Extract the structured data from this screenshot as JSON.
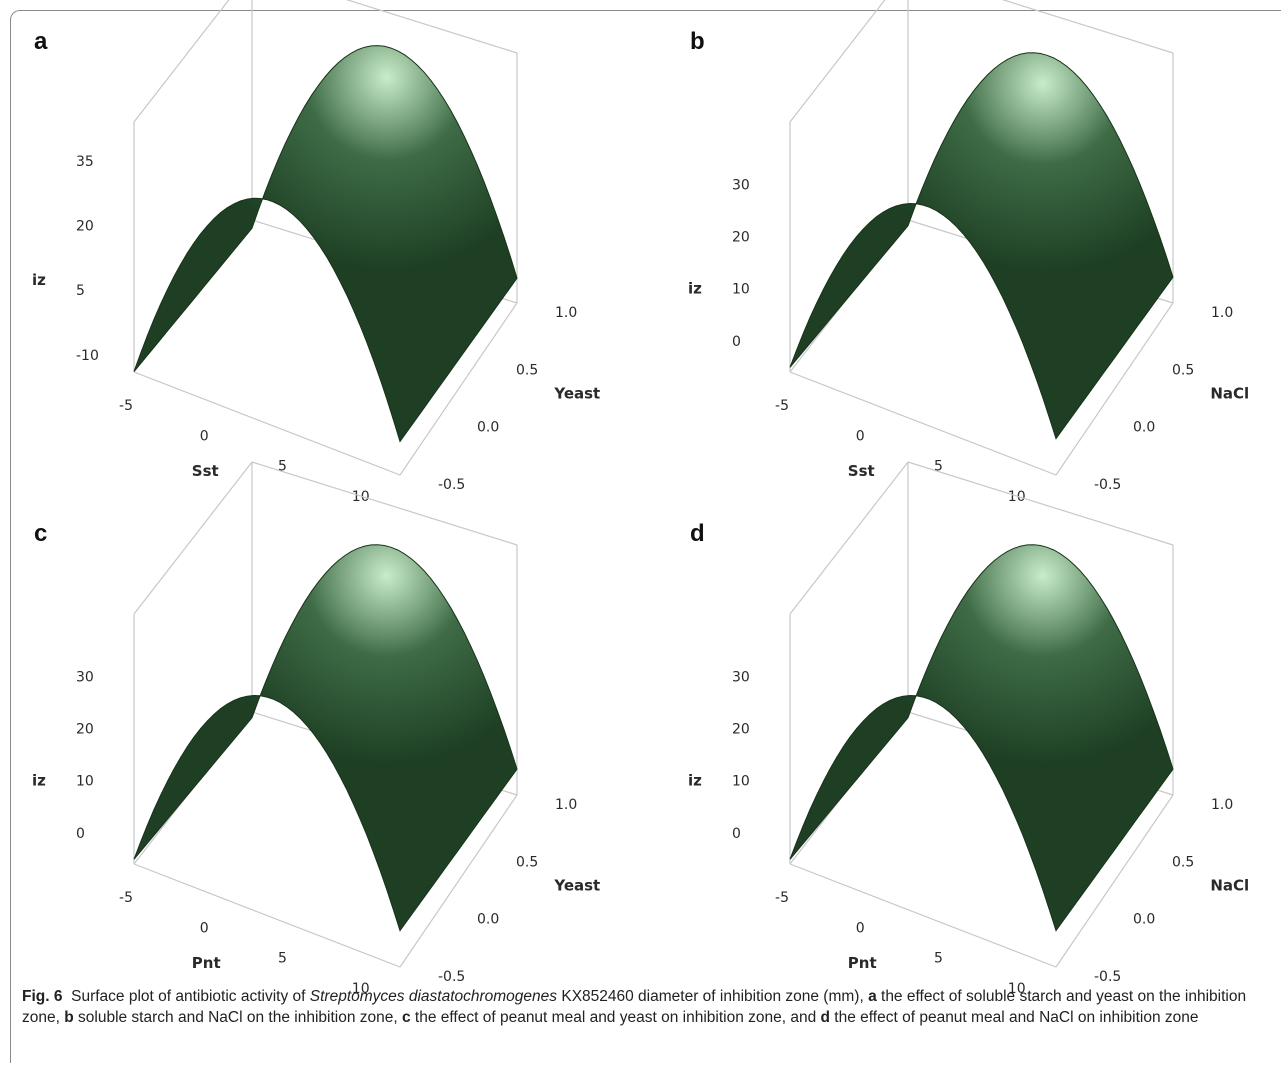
{
  "chart_data": [
    {
      "type": "surface",
      "panel_letter": "a",
      "zlabel": "iz",
      "xlabel": "Sst",
      "ylabel": "Yeast",
      "z_ticks": [
        "35",
        "20",
        "5",
        "-10"
      ],
      "x_ticks": [
        "-5",
        "0",
        "5",
        "10"
      ],
      "y_ticks": [
        "-0.5",
        "0.0",
        "0.5",
        "1.0"
      ],
      "zlim": [
        -10,
        35
      ],
      "xlim": [
        -5,
        12
      ],
      "ylim": [
        -0.5,
        1.0
      ],
      "peak_z": 38,
      "edge_z": -10
    },
    {
      "type": "surface",
      "panel_letter": "b",
      "zlabel": "iz",
      "xlabel": "Sst",
      "ylabel": "NaCl",
      "z_ticks": [
        "30",
        "20",
        "10",
        "0"
      ],
      "x_ticks": [
        "-5",
        "0",
        "5",
        "10"
      ],
      "y_ticks": [
        "-0.5",
        "0.0",
        "0.5",
        "1.0"
      ],
      "zlim": [
        0,
        30
      ],
      "xlim": [
        -5,
        12
      ],
      "ylim": [
        -0.5,
        1.0
      ],
      "peak_z": 36,
      "edge_z": -2
    },
    {
      "type": "surface",
      "panel_letter": "c",
      "zlabel": "iz",
      "xlabel": "Pnt",
      "ylabel": "Yeast",
      "z_ticks": [
        "30",
        "20",
        "10",
        "0"
      ],
      "x_ticks": [
        "-5",
        "0",
        "5",
        "10"
      ],
      "y_ticks": [
        "-0.5",
        "0.0",
        "0.5",
        "1.0"
      ],
      "zlim": [
        0,
        30
      ],
      "xlim": [
        -5,
        12
      ],
      "ylim": [
        -0.5,
        1.0
      ],
      "peak_z": 36,
      "edge_z": -2
    },
    {
      "type": "surface",
      "panel_letter": "d",
      "zlabel": "iz",
      "xlabel": "Pnt",
      "ylabel": "NaCl",
      "z_ticks": [
        "30",
        "20",
        "10",
        "0"
      ],
      "x_ticks": [
        "-5",
        "0",
        "5",
        "10"
      ],
      "y_ticks": [
        "-0.5",
        "0.0",
        "0.5",
        "1.0"
      ],
      "zlim": [
        0,
        30
      ],
      "xlim": [
        -5,
        12
      ],
      "ylim": [
        -0.5,
        1.0
      ],
      "peak_z": 36,
      "edge_z": -2
    }
  ],
  "caption": {
    "fig_label": "Fig. 6",
    "part1": "Surface plot of antibiotic activity of ",
    "species": "Streptomyces diastatochromogenes",
    "part2": " KX852460 diameter of inhibition zone (mm), ",
    "a": "a",
    "part3": " the effect of soluble starch and yeast on the inhibition zone, ",
    "b": "b",
    "part4": " soluble starch and NaCl on the inhibition zone, ",
    "c": "c",
    "part5": " the effect of peanut meal and yeast on inhibition zone, and ",
    "d": "d",
    "part6": " the effect of peanut meal and NaCl on inhibition zone"
  },
  "colors": {
    "surface_dark": "#1e3f24",
    "surface_mid": "#3e6c46",
    "surface_highlight": "#c9ecc9",
    "frame_line": "#c8c8c8",
    "text": "#222222"
  }
}
